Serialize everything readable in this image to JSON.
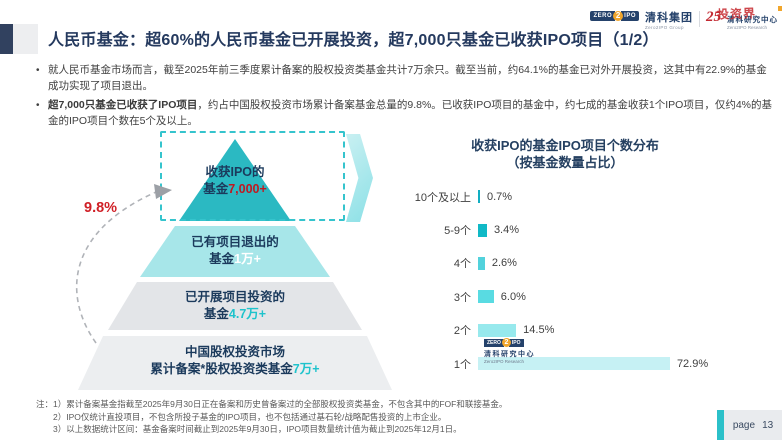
{
  "header": {
    "title": "人民币基金：超60%的人民币基金已开展投资，超7,000只基金已收获IPO项目（1/2）",
    "group_logo": {
      "zero": "ZERO",
      "two": "2",
      "ipo": "IPO",
      "name_cn": "清科集团",
      "name_en": "Zero2IPO Group"
    },
    "anniversary": "25",
    "research_logo": {
      "name_cn": "清科研究中心",
      "name_en": "Zero2IPO Research",
      "watermark": "投资界"
    }
  },
  "bullets": [
    {
      "marker": "•",
      "lead": "",
      "text": "就人民币基金市场而言，截至2025年前三季度累计备案的股权投资类基金共计7万余只。截至当前，约64.1%的基金已对外开展投资，这其中有22.9%的基金成功实现了项目退出。"
    },
    {
      "marker": "•",
      "lead": "超7,000只基金已收获了IPO项目",
      "text": "，约占中国股权投资市场累计备案基金总量的9.8%。已收获IPO项目的基金中，约七成的基金收获1个IPO项目，仅约4%的基金的IPO项目个数在5个及以上。"
    }
  ],
  "pyramid": {
    "callout_pct": "9.8%",
    "levels": [
      {
        "line1": "收获IPO的",
        "line2_prefix": "基金",
        "line2_value": "7,000+"
      },
      {
        "line1": "已有项目退出的",
        "line2_prefix": "基金",
        "line2_value": "1万+"
      },
      {
        "line1": "已开展项目投资的",
        "line2_prefix": "基金",
        "line2_value": "4.7万+"
      },
      {
        "line1": "中国股权投资市场",
        "line2_prefix": "累计备案*股权投资类基金",
        "line2_value": "7万+"
      }
    ]
  },
  "chart_data": {
    "type": "bar",
    "orientation": "horizontal",
    "title": "收获IPO的基金IPO项目个数分布",
    "subtitle": "（按基金数量占比）",
    "categories": [
      "10个及以上",
      "5-9个",
      "4个",
      "3个",
      "2个",
      "1个"
    ],
    "values": [
      0.7,
      3.4,
      2.6,
      6.0,
      14.5,
      72.9
    ],
    "value_labels": [
      "0.7%",
      "3.4%",
      "2.6%",
      "6.0%",
      "14.5%",
      "72.9%"
    ],
    "bar_colors": [
      "#12AEC2",
      "#10B9C6",
      "#52D2DC",
      "#59DBE2",
      "#97E9ED",
      "#C6F1F4"
    ],
    "xlim": [
      0,
      100
    ],
    "grid": false,
    "legend": "none"
  },
  "chart_watermark": {
    "zero": "ZERO",
    "two": "2",
    "ipo": "IPO",
    "name_cn": "清科研究中心",
    "name_en": "Zero2IPO Research"
  },
  "notes": {
    "prefix": "注：",
    "items": [
      "1）累计备案基金指截至2025年9月30日正在备案和历史曾备案过的全部股权投资类基金，不包含其中的FOF和联接基金。",
      "2）IPO仅统计直投项目，不包含所投子基金的IPO项目，也不包括通过基石轮/战略配售投资的上市企业。",
      "3）以上数据统计区间：基金备案时间截止到2025年9月30日，IPO项目数量统计值为截止到2025年12月1日。"
    ]
  },
  "footer": {
    "page_label": "page",
    "page_number": "13"
  },
  "colors": {
    "navy": "#24395E",
    "accent_teal": "#2BB9C2",
    "light_cyan": "#A7E6E9",
    "gray_level": "#E3E5E8",
    "red_value": "#C01820",
    "callout_red": "#D01F26"
  }
}
